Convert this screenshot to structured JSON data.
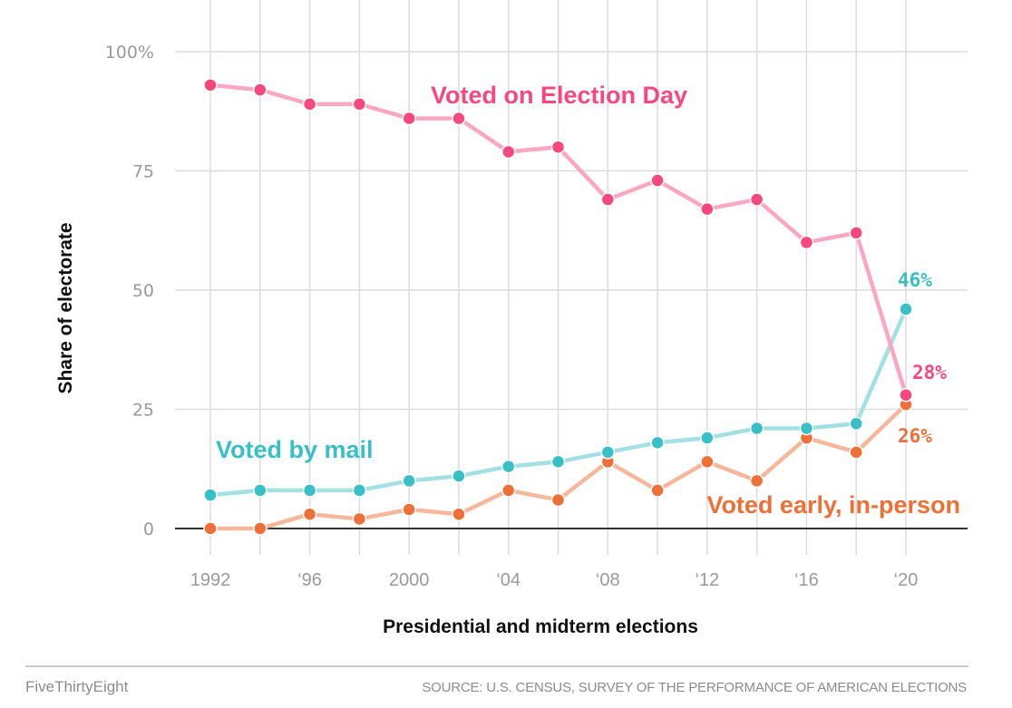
{
  "chart_data": {
    "type": "line",
    "title": "",
    "xlabel": "Presidential and midterm elections",
    "ylabel": "Share of electorate",
    "x": [
      1992,
      1994,
      1996,
      1998,
      2000,
      2002,
      2004,
      2006,
      2008,
      2010,
      2012,
      2014,
      2016,
      2018,
      2020
    ],
    "xlim": [
      1988.8,
      2023.2
    ],
    "ylim": [
      0,
      100
    ],
    "x_ticks": [
      {
        "value": 1992,
        "label": "1992"
      },
      {
        "value": 1996,
        "label": "‘96"
      },
      {
        "value": 2000,
        "label": "2000"
      },
      {
        "value": 2004,
        "label": "‘04"
      },
      {
        "value": 2008,
        "label": "‘08"
      },
      {
        "value": 2012,
        "label": "‘12"
      },
      {
        "value": 2016,
        "label": "‘16"
      },
      {
        "value": 2020,
        "label": "‘20"
      }
    ],
    "y_ticks": [
      {
        "value": 0,
        "label": "0"
      },
      {
        "value": 25,
        "label": "25"
      },
      {
        "value": 50,
        "label": "50"
      },
      {
        "value": 75,
        "label": "75"
      },
      {
        "value": 100,
        "label": "100%"
      }
    ],
    "grid": true,
    "series": [
      {
        "name": "Voted on Election Day",
        "color": "#f7487e",
        "line_color": "#fba7c2",
        "values": [
          93,
          92,
          89,
          89,
          86,
          86,
          79,
          80,
          69,
          73,
          67,
          69,
          60,
          62,
          28
        ],
        "end_label": "28%"
      },
      {
        "name": "Voted by mail",
        "color": "#39bfc6",
        "line_color": "#a2e0e3",
        "values": [
          7,
          8,
          8,
          8,
          10,
          11,
          13,
          14,
          16,
          18,
          19,
          21,
          21,
          22,
          46
        ],
        "end_label": "46%"
      },
      {
        "name": "Voted early, in-person",
        "color": "#ee6f37",
        "line_color": "#f6b79b",
        "values": [
          0,
          0,
          3,
          2,
          4,
          3,
          8,
          6,
          14,
          8,
          14,
          10,
          19,
          16,
          26
        ],
        "end_label": "26%"
      }
    ]
  },
  "footer": {
    "brand": "FiveThirtyEight",
    "source": "SOURCE: U.S. CENSUS, SURVEY OF THE PERFORMANCE OF AMERICAN ELECTIONS"
  }
}
